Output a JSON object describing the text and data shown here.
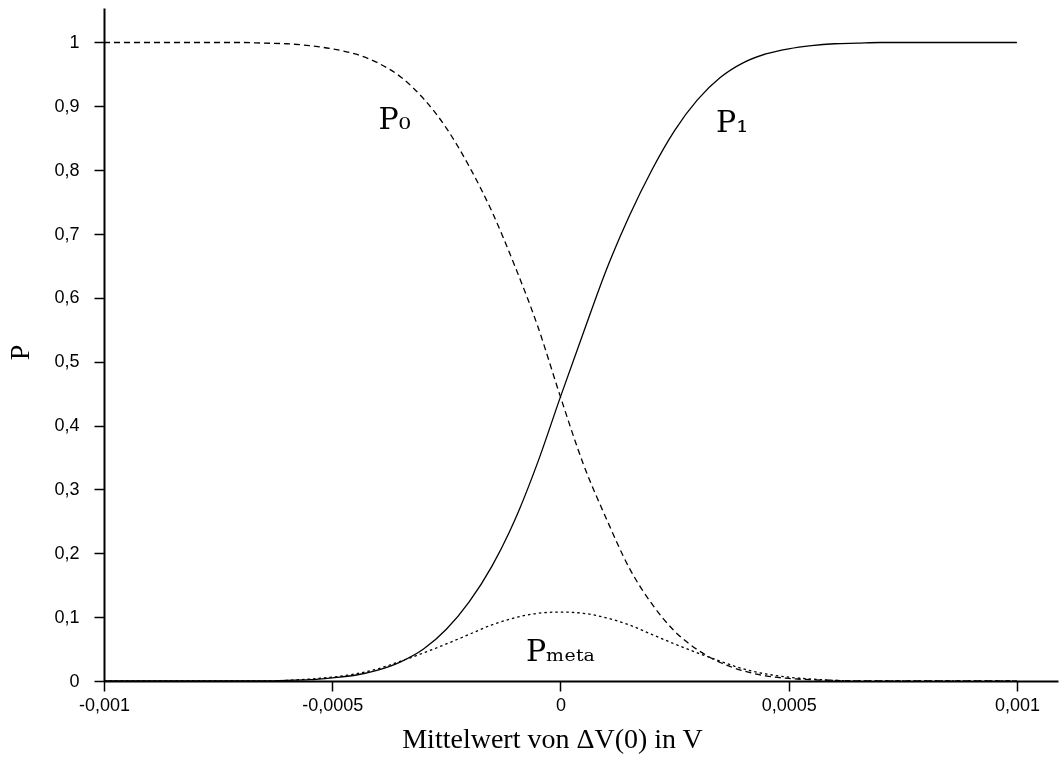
{
  "chart_data": {
    "type": "line",
    "xlabel": "Mittelwert von ΔV(0) in V",
    "ylabel": "P",
    "x": [
      -0.001,
      -0.00095,
      -0.0009,
      -0.00085,
      -0.0008,
      -0.00075,
      -0.0007,
      -0.00065,
      -0.0006,
      -0.00055,
      -0.0005,
      -0.00045,
      -0.0004,
      -0.00035,
      -0.0003,
      -0.00025,
      -0.0002,
      -0.00015,
      -0.0001,
      -5e-05,
      0,
      5e-05,
      0.0001,
      0.00015,
      0.0002,
      0.00025,
      0.0003,
      0.00035,
      0.0004,
      0.00045,
      0.0005,
      0.00055,
      0.0006,
      0.00065,
      0.0007,
      0.00075,
      0.0008,
      0.00085,
      0.0009,
      0.00095,
      0.001
    ],
    "xlim": [
      -0.001,
      0.00109
    ],
    "ylim": [
      0,
      1.054
    ],
    "xticks": [
      {
        "value": -0.001,
        "label": "-0,001"
      },
      {
        "value": -0.0005,
        "label": "-0,0005"
      },
      0,
      {
        "value": 0.0005,
        "label": "0,0005"
      },
      {
        "value": 0.001,
        "label": "0,001"
      }
    ],
    "yticks": [
      0,
      {
        "value": 0.1,
        "label": "0,1"
      },
      {
        "value": 0.2,
        "label": "0,2"
      },
      {
        "value": 0.3,
        "label": "0,3"
      },
      {
        "value": 0.4,
        "label": "0,4"
      },
      {
        "value": 0.5,
        "label": "0,5"
      },
      {
        "value": 0.6,
        "label": "0,6"
      },
      {
        "value": 0.7,
        "label": "0,7"
      },
      {
        "value": 0.8,
        "label": "0,8"
      },
      {
        "value": 0.9,
        "label": "0,9"
      },
      1
    ],
    "series": [
      {
        "name": "P₀",
        "color": "#000000",
        "line_style": "dashed",
        "values": [
          1,
          1,
          1,
          1,
          1,
          1,
          1,
          0.999,
          0.998,
          0.995,
          0.99,
          0.982,
          0.968,
          0.946,
          0.912,
          0.866,
          0.806,
          0.735,
          0.65,
          0.556,
          0.445,
          0.34,
          0.255,
          0.178,
          0.121,
          0.078,
          0.049,
          0.029,
          0.016,
          0.008,
          0.004,
          0.002,
          0.001,
          0,
          0,
          0,
          0,
          0,
          0,
          0,
          0
        ]
      },
      {
        "name": "P₁",
        "color": "#000000",
        "line_style": "solid",
        "values": [
          0,
          0,
          0,
          0,
          0,
          0,
          0,
          0,
          0.001,
          0.002,
          0.005,
          0.009,
          0.017,
          0.03,
          0.05,
          0.081,
          0.124,
          0.18,
          0.252,
          0.342,
          0.445,
          0.545,
          0.643,
          0.727,
          0.8,
          0.862,
          0.91,
          0.945,
          0.968,
          0.982,
          0.99,
          0.995,
          0.998,
          0.999,
          1,
          1,
          1,
          1,
          1,
          1,
          1
        ]
      },
      {
        "name": "Pₘₑₜₐ",
        "color": "#000000",
        "line_style": "dotted",
        "values": [
          0,
          0,
          0,
          0,
          0,
          0,
          0,
          0,
          0.001,
          0.003,
          0.006,
          0.011,
          0.019,
          0.031,
          0.044,
          0.058,
          0.073,
          0.088,
          0.099,
          0.106,
          0.108,
          0.106,
          0.099,
          0.088,
          0.073,
          0.058,
          0.044,
          0.031,
          0.019,
          0.011,
          0.006,
          0.003,
          0.001,
          0,
          0,
          0,
          0,
          0,
          0,
          0,
          0
        ]
      }
    ]
  }
}
